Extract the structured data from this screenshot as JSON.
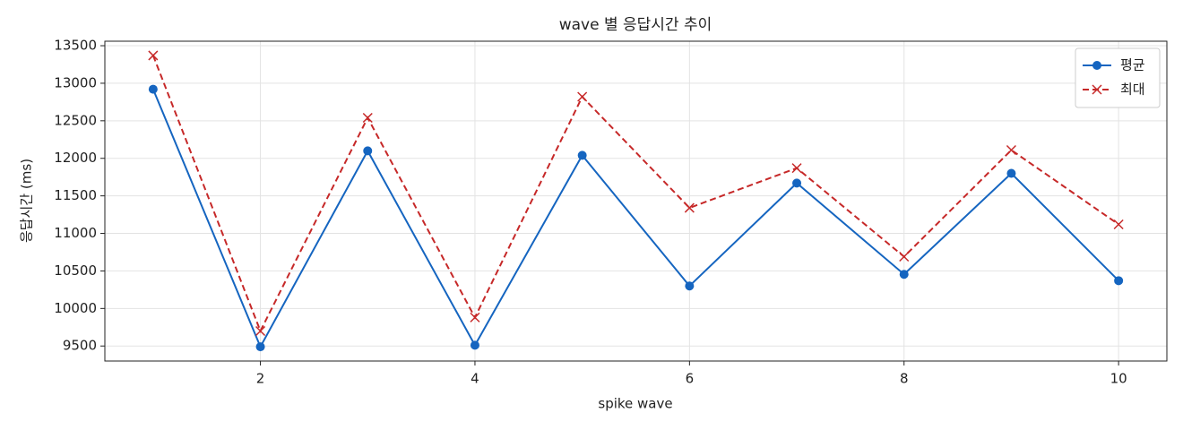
{
  "chart_data": {
    "type": "line",
    "title": "wave 별 응답시간 추이",
    "x_label": "spike wave",
    "y_label": "응답시간 (ms)",
    "x": [
      1,
      2,
      3,
      4,
      5,
      6,
      7,
      8,
      9,
      10
    ],
    "series": [
      {
        "name": "평균",
        "color": "#1565c0",
        "marker": "o",
        "linestyle": "solid",
        "values": [
          12920,
          9490,
          12100,
          9510,
          12040,
          10300,
          11670,
          10455,
          11800,
          10370
        ]
      },
      {
        "name": "최대",
        "color": "#c62828",
        "marker": "x",
        "linestyle": "dashed",
        "values": [
          13370,
          9700,
          12540,
          9880,
          12820,
          11340,
          11870,
          10690,
          12110,
          11120
        ]
      }
    ],
    "xlim": [
      0.55,
      10.45
    ],
    "xticks": [
      2,
      4,
      6,
      8,
      10
    ],
    "ylim": [
      9300,
      13560
    ],
    "yticks": [
      9500,
      10000,
      10500,
      11000,
      11500,
      12000,
      12500,
      13000,
      13500
    ],
    "grid": true,
    "legend": "upper right"
  }
}
